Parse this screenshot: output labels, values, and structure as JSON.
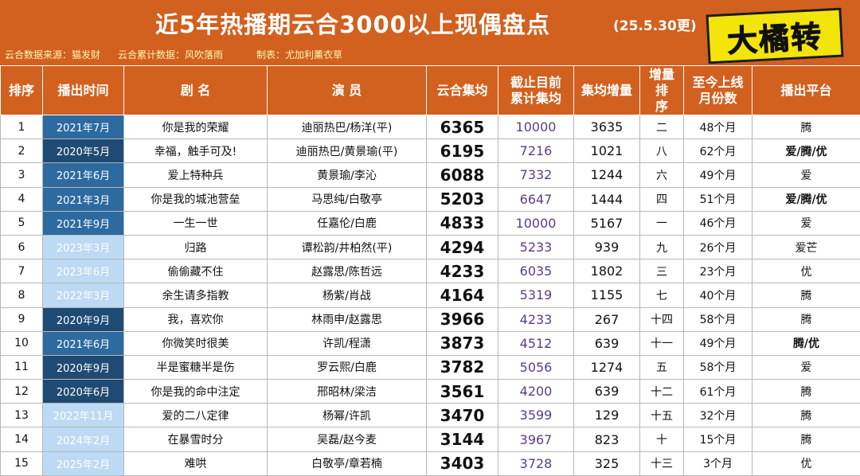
{
  "header": {
    "title": "近5年热播期云合3000以上现偶盘点",
    "update_note": "(25.5.30更)",
    "brand": "大橘转",
    "source_credit": "云合数据来源：猫发财",
    "cumulative_credit": "云合累计数据：风吹落雨",
    "maker_credit": "制表：尤加利薰衣草"
  },
  "table": {
    "columns": [
      "排序",
      "播出时间",
      "剧 名",
      "演 员",
      "云合集均",
      "截止目前\n累计集均",
      "集均增量",
      "增量排\n序",
      "至今上线\n月份数",
      "播出平台"
    ],
    "rows": [
      {
        "rank": "1",
        "date": "2021年7月",
        "shade": "mid",
        "title": "你是我的荣耀",
        "cast": "迪丽热巴/杨洋(平)",
        "avg": "6365",
        "cum": "10000",
        "inc": "3635",
        "inc_rank": "二",
        "months": "48个月",
        "platform": "腾",
        "platform_bold": false
      },
      {
        "rank": "2",
        "date": "2020年5月",
        "shade": "dark",
        "title": "幸福，触手可及!",
        "cast": "迪丽热巴/黄景瑜(平)",
        "avg": "6195",
        "cum": "7216",
        "inc": "1021",
        "inc_rank": "八",
        "months": "62个月",
        "platform": "爱/腾/优",
        "platform_bold": true
      },
      {
        "rank": "3",
        "date": "2021年6月",
        "shade": "mid",
        "title": "爱上特种兵",
        "cast": "黄景瑜/李沁",
        "avg": "6088",
        "cum": "7332",
        "inc": "1244",
        "inc_rank": "六",
        "months": "49个月",
        "platform": "爱",
        "platform_bold": false
      },
      {
        "rank": "4",
        "date": "2021年3月",
        "shade": "mid",
        "title": "你是我的城池营垒",
        "cast": "马思纯/白敬亭",
        "avg": "5203",
        "cum": "6647",
        "inc": "1444",
        "inc_rank": "四",
        "months": "51个月",
        "platform": "爱/腾/优",
        "platform_bold": true
      },
      {
        "rank": "5",
        "date": "2021年9月",
        "shade": "mid",
        "title": "一生一世",
        "cast": "任嘉伦/白鹿",
        "avg": "4833",
        "cum": "10000",
        "inc": "5167",
        "inc_rank": "一",
        "months": "46个月",
        "platform": "爱",
        "platform_bold": false
      },
      {
        "rank": "6",
        "date": "2023年3月",
        "shade": "light",
        "title": "归路",
        "cast": "谭松韵/井柏然(平)",
        "avg": "4294",
        "cum": "5233",
        "inc": "939",
        "inc_rank": "九",
        "months": "26个月",
        "platform": "爱芒",
        "platform_bold": false
      },
      {
        "rank": "7",
        "date": "2023年6月",
        "shade": "light",
        "title": "偷偷藏不住",
        "cast": "赵露思/陈哲远",
        "avg": "4233",
        "cum": "6035",
        "inc": "1802",
        "inc_rank": "三",
        "months": "23个月",
        "platform": "优",
        "platform_bold": false
      },
      {
        "rank": "8",
        "date": "2022年3月",
        "shade": "light",
        "title": "余生请多指教",
        "cast": "杨紫/肖战",
        "avg": "4164",
        "cum": "5319",
        "inc": "1155",
        "inc_rank": "七",
        "months": "40个月",
        "platform": "腾",
        "platform_bold": false
      },
      {
        "rank": "9",
        "date": "2020年9月",
        "shade": "dark",
        "title": "我，喜欢你",
        "cast": "林雨申/赵露思",
        "avg": "3966",
        "cum": "4233",
        "inc": "267",
        "inc_rank": "十四",
        "months": "58个月",
        "platform": "腾",
        "platform_bold": false
      },
      {
        "rank": "10",
        "date": "2021年6月",
        "shade": "mid",
        "title": "你微笑时很美",
        "cast": "许凯/程潇",
        "avg": "3873",
        "cum": "4512",
        "inc": "639",
        "inc_rank": "十一",
        "months": "49个月",
        "platform": "腾/优",
        "platform_bold": true
      },
      {
        "rank": "11",
        "date": "2020年9月",
        "shade": "dark",
        "title": "半是蜜糖半是伤",
        "cast": "罗云熙/白鹿",
        "avg": "3782",
        "cum": "5056",
        "inc": "1274",
        "inc_rank": "五",
        "months": "58个月",
        "platform": "爱",
        "platform_bold": false
      },
      {
        "rank": "12",
        "date": "2020年6月",
        "shade": "dark",
        "title": "你是我的命中注定",
        "cast": "邢昭林/梁洁",
        "avg": "3561",
        "cum": "4200",
        "inc": "639",
        "inc_rank": "十二",
        "months": "61个月",
        "platform": "腾",
        "platform_bold": false
      },
      {
        "rank": "13",
        "date": "2022年11月",
        "shade": "light",
        "title": "爱的二八定律",
        "cast": "杨幂/许凯",
        "avg": "3470",
        "cum": "3599",
        "inc": "129",
        "inc_rank": "十五",
        "months": "32个月",
        "platform": "腾",
        "platform_bold": false
      },
      {
        "rank": "14",
        "date": "2024年2月",
        "shade": "light",
        "title": "在暴雪时分",
        "cast": "吴磊/赵今麦",
        "avg": "3144",
        "cum": "3967",
        "inc": "823",
        "inc_rank": "十",
        "months": "15个月",
        "platform": "腾",
        "platform_bold": false
      },
      {
        "rank": "15",
        "date": "2025年2月",
        "shade": "light",
        "title": "难哄",
        "cast": "白敬亭/章若楠",
        "avg": "3403",
        "cum": "3728",
        "inc": "325",
        "inc_rank": "十三",
        "months": "3个月",
        "platform": "优",
        "platform_bold": false
      }
    ]
  },
  "colors": {
    "header_orange": "#d2601f",
    "date_dark": "#1f4a73",
    "date_mid": "#2c6aa0",
    "date_light": "#bcdaf3",
    "brand_yellow": "#f3e40a",
    "cumulative_purple": "#5a3d86"
  }
}
